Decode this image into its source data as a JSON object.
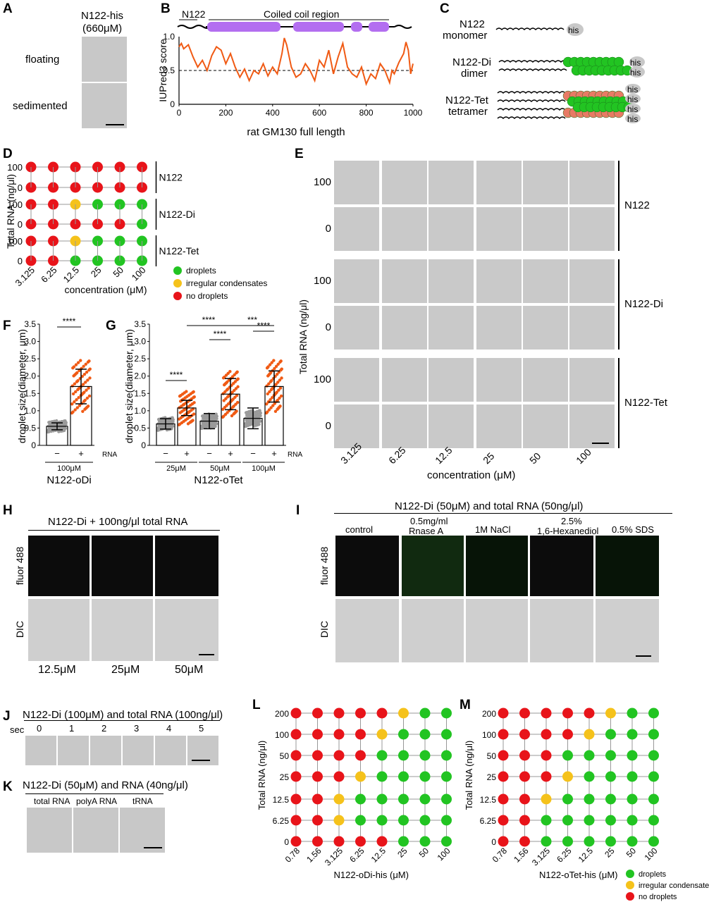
{
  "panels": {
    "A": "A",
    "B": "B",
    "C": "C",
    "D": "D",
    "E": "E",
    "F": "F",
    "G": "G",
    "H": "H",
    "I": "I",
    "J": "J",
    "K": "K",
    "L": "L",
    "M": "M"
  },
  "A": {
    "title": "N122-his",
    "conc": "(660μM)",
    "rows": [
      "floating",
      "sedimented"
    ]
  },
  "B": {
    "n122": "N122",
    "coil": "Coiled coil region"
  },
  "C": {
    "mono": [
      "N122",
      "monomer"
    ],
    "di": [
      "N122-Di",
      "dimer"
    ],
    "tet": [
      "N122-Tet",
      "tetramer"
    ],
    "his": "his"
  },
  "E": {
    "ylabel": "Total RNA (ng/μl)",
    "xlabel": "concentration (μM)",
    "cols": [
      "3.125",
      "6.25",
      "12.5",
      "25",
      "50",
      "100"
    ],
    "rows": [
      "100",
      "0",
      "100",
      "0",
      "100",
      "0"
    ],
    "groups": [
      "N122",
      "N122-Di",
      "N122-Tet"
    ]
  },
  "H": {
    "title": "N122-Di + 100ng/μl total RNA",
    "rows": [
      "fluor 488",
      "DIC"
    ],
    "cols": [
      "12.5μM",
      "25μM",
      "50μM"
    ]
  },
  "I": {
    "title": "N122-Di (50μM) and total RNA (50ng/μl)",
    "cols": [
      "control",
      "0.5mg/ml",
      "Rnase A",
      "1M NaCl",
      "2.5%",
      "1,6-Hexanediol",
      "0.5% SDS"
    ],
    "rows": [
      "fluor 488",
      "DIC"
    ]
  },
  "J": {
    "title": "N122-Di (100μM) and total RNA (100ng/μl)",
    "sec": "sec",
    "times": [
      "0",
      "1",
      "2",
      "3",
      "4",
      "5"
    ]
  },
  "K": {
    "title": "N122-Di (50μM) and RNA (40ng/μl)",
    "cols": [
      "total RNA",
      "polyA RNA",
      "tRNA"
    ]
  },
  "colors": {
    "droplets": "#22c422",
    "irregular": "#f5c21b",
    "none": "#e8141a",
    "orange": "#f05a14",
    "purple": "#b36ef0"
  },
  "legend": {
    "droplets": "droplets",
    "irregular": "irregular condensates",
    "none": "no droplets"
  },
  "chart_data": [
    {
      "id": "B",
      "type": "line",
      "ylabel": "IUPred3 score",
      "xlabel": "rat GM130 full length",
      "xlim": [
        0,
        1000
      ],
      "ylim": [
        0,
        1.0
      ],
      "xticks": [
        "0",
        "200",
        "400",
        "600",
        "800",
        "1000"
      ],
      "yticks": [
        "0",
        "0.5",
        "1.0"
      ],
      "threshold": 0.5,
      "x": [
        0,
        10,
        20,
        40,
        60,
        80,
        100,
        120,
        140,
        160,
        180,
        200,
        220,
        240,
        260,
        280,
        300,
        320,
        340,
        360,
        380,
        400,
        420,
        440,
        450,
        460,
        480,
        500,
        520,
        540,
        560,
        580,
        600,
        620,
        640,
        660,
        680,
        700,
        720,
        740,
        760,
        780,
        800,
        820,
        840,
        860,
        880,
        900,
        910,
        920,
        940,
        960,
        970,
        980,
        990,
        1000
      ],
      "y": [
        0.85,
        0.9,
        0.82,
        0.88,
        0.7,
        0.55,
        0.65,
        0.5,
        0.72,
        0.85,
        0.8,
        0.6,
        0.75,
        0.55,
        0.4,
        0.52,
        0.35,
        0.5,
        0.45,
        0.6,
        0.42,
        0.55,
        0.45,
        0.75,
        0.98,
        0.88,
        0.55,
        0.4,
        0.45,
        0.6,
        0.5,
        0.35,
        0.65,
        0.55,
        0.8,
        0.45,
        0.7,
        0.9,
        0.55,
        0.45,
        0.4,
        0.55,
        0.3,
        0.45,
        0.38,
        0.6,
        0.5,
        0.32,
        0.5,
        0.45,
        0.62,
        0.75,
        0.92,
        0.8,
        0.45,
        0.6
      ]
    },
    {
      "id": "D",
      "type": "scatter",
      "ylabel": "Total RNA (ng/μl)",
      "xlabel": "concentration (μM)",
      "categories": [
        "3.125",
        "6.25",
        "12.5",
        "25",
        "50",
        "100"
      ],
      "groups": [
        {
          "name": "N122",
          "rows": [
            {
              "rna": "100",
              "states": [
                "none",
                "none",
                "none",
                "none",
                "none",
                "none"
              ]
            },
            {
              "rna": "0",
              "states": [
                "none",
                "none",
                "none",
                "none",
                "none",
                "none"
              ]
            }
          ]
        },
        {
          "name": "N122-Di",
          "rows": [
            {
              "rna": "100",
              "states": [
                "none",
                "none",
                "irregular",
                "droplets",
                "droplets",
                "droplets"
              ]
            },
            {
              "rna": "0",
              "states": [
                "none",
                "none",
                "none",
                "none",
                "none",
                "droplets"
              ]
            }
          ]
        },
        {
          "name": "N122-Tet",
          "rows": [
            {
              "rna": "100",
              "states": [
                "none",
                "none",
                "irregular",
                "droplets",
                "droplets",
                "droplets"
              ]
            },
            {
              "rna": "0",
              "states": [
                "none",
                "none",
                "droplets",
                "droplets",
                "droplets",
                "droplets"
              ]
            }
          ]
        }
      ]
    },
    {
      "id": "F",
      "type": "bar",
      "ylabel": "droplet size(diameter, μm)",
      "ylim": [
        0,
        3.5
      ],
      "yticks": [
        "0",
        "0.5",
        "1.0",
        "1.5",
        "2.0",
        "2.5",
        "3.0",
        "3.5"
      ],
      "categories": [
        "−",
        "+"
      ],
      "sublabel": "RNA",
      "group": "100μM",
      "title": "N122-oDi",
      "values": [
        0.55,
        1.7
      ],
      "errors": [
        0.1,
        0.5
      ],
      "significance": "****"
    },
    {
      "id": "G",
      "type": "bar",
      "ylabel": "droplet size(diameter, μm)",
      "ylim": [
        0,
        3.5
      ],
      "yticks": [
        "0",
        "0.5",
        "1.0",
        "1.5",
        "2.0",
        "2.5",
        "3.0",
        "3.5"
      ],
      "categories": [
        "−",
        "+",
        "−",
        "+",
        "−",
        "+"
      ],
      "sublabel": "RNA",
      "groups": [
        "25μM",
        "50μM",
        "100μM"
      ],
      "title": "N122-oTet",
      "values": [
        0.62,
        1.08,
        0.7,
        1.48,
        0.78,
        1.7
      ],
      "errors": [
        0.15,
        0.22,
        0.22,
        0.45,
        0.3,
        0.45
      ],
      "significance": [
        {
          "pair": [
            0,
            1
          ],
          "label": "****"
        },
        {
          "pair": [
            2,
            3
          ],
          "label": "****"
        },
        {
          "pair": [
            4,
            5
          ],
          "label": "****"
        },
        {
          "pair": [
            1,
            3
          ],
          "label": "****"
        },
        {
          "pair": [
            3,
            5
          ],
          "label": "***"
        }
      ]
    },
    {
      "id": "L",
      "type": "scatter",
      "ylabel": "Total RNA (ng/μl)",
      "xlabel": "N122-oDi-his (μM)",
      "categories": [
        "0.78",
        "1.56",
        "3.125",
        "6.25",
        "12.5",
        "25",
        "50",
        "100"
      ],
      "rows": [
        {
          "rna": "200",
          "states": [
            "none",
            "none",
            "none",
            "none",
            "none",
            "irregular",
            "droplets",
            "droplets"
          ]
        },
        {
          "rna": "100",
          "states": [
            "none",
            "none",
            "none",
            "none",
            "irregular",
            "droplets",
            "droplets",
            "droplets"
          ]
        },
        {
          "rna": "50",
          "states": [
            "none",
            "none",
            "none",
            "none",
            "droplets",
            "droplets",
            "droplets",
            "droplets"
          ]
        },
        {
          "rna": "25",
          "states": [
            "none",
            "none",
            "none",
            "irregular",
            "droplets",
            "droplets",
            "droplets",
            "droplets"
          ]
        },
        {
          "rna": "12.5",
          "states": [
            "none",
            "none",
            "irregular",
            "droplets",
            "droplets",
            "droplets",
            "droplets",
            "droplets"
          ]
        },
        {
          "rna": "6.25",
          "states": [
            "none",
            "none",
            "irregular",
            "droplets",
            "droplets",
            "droplets",
            "droplets",
            "droplets"
          ]
        },
        {
          "rna": "0",
          "states": [
            "none",
            "none",
            "none",
            "none",
            "none",
            "droplets",
            "droplets",
            "droplets"
          ]
        }
      ]
    },
    {
      "id": "M",
      "type": "scatter",
      "ylabel": "Total RNA (ng/μl)",
      "xlabel": "N122-oTet-his (μM)",
      "categories": [
        "0.78",
        "1.56",
        "3.125",
        "6.25",
        "12.5",
        "25",
        "50",
        "100"
      ],
      "rows": [
        {
          "rna": "200",
          "states": [
            "none",
            "none",
            "none",
            "none",
            "none",
            "irregular",
            "droplets",
            "droplets"
          ]
        },
        {
          "rna": "100",
          "states": [
            "none",
            "none",
            "none",
            "none",
            "irregular",
            "droplets",
            "droplets",
            "droplets"
          ]
        },
        {
          "rna": "50",
          "states": [
            "none",
            "none",
            "none",
            "droplets",
            "droplets",
            "droplets",
            "droplets",
            "droplets"
          ]
        },
        {
          "rna": "25",
          "states": [
            "none",
            "none",
            "none",
            "irregular",
            "droplets",
            "droplets",
            "droplets",
            "droplets"
          ]
        },
        {
          "rna": "12.5",
          "states": [
            "none",
            "none",
            "irregular",
            "droplets",
            "droplets",
            "droplets",
            "droplets",
            "droplets"
          ]
        },
        {
          "rna": "6.25",
          "states": [
            "none",
            "none",
            "droplets",
            "droplets",
            "droplets",
            "droplets",
            "droplets",
            "droplets"
          ]
        },
        {
          "rna": "0",
          "states": [
            "none",
            "none",
            "droplets",
            "droplets",
            "droplets",
            "droplets",
            "droplets",
            "droplets"
          ]
        }
      ]
    }
  ]
}
